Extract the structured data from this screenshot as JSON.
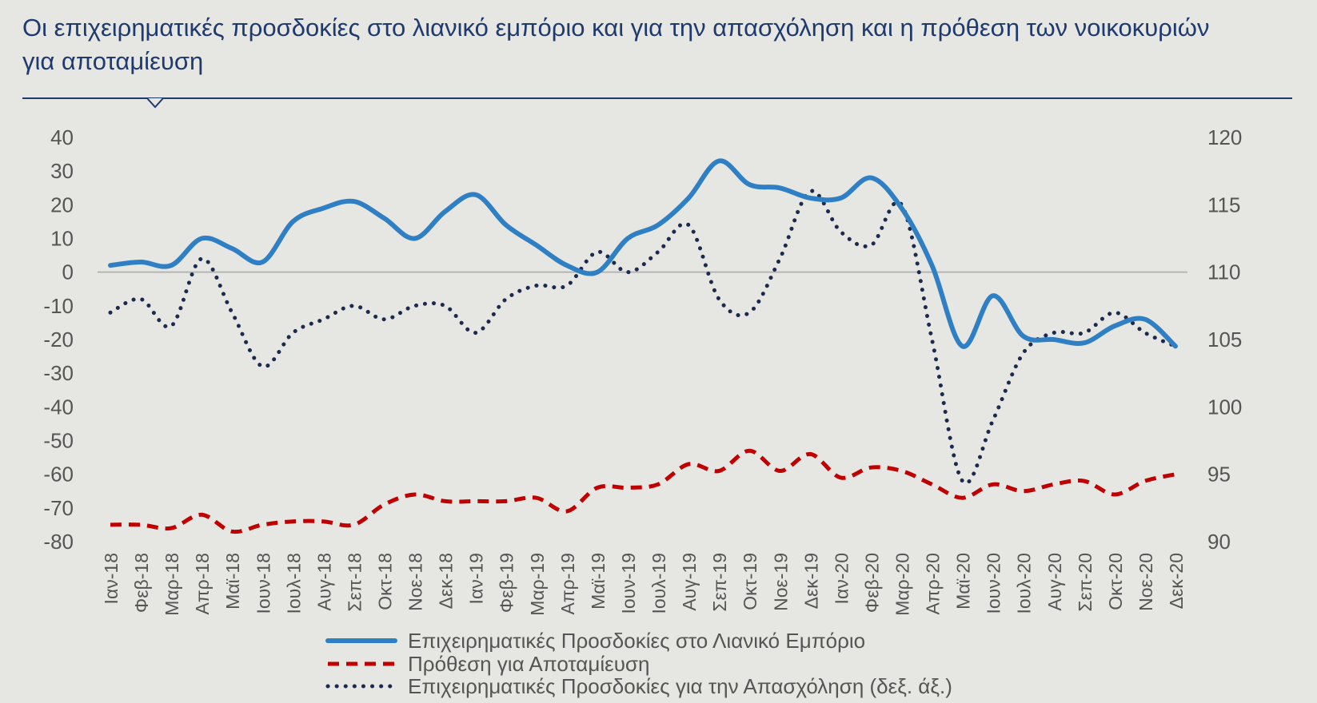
{
  "title": "Οι επιχειρηματικές προσδοκίες στο λιανικό εμπόριο και για την απασχόληση και η πρόθεση των νοικοκυριών για αποταμίευση",
  "chart_data": {
    "type": "line",
    "categories": [
      "Ιαν-18",
      "Φεβ-18",
      "Μαρ-18",
      "Απρ-18",
      "Μαϊ-18",
      "Ιουν-18",
      "Ιουλ-18",
      "Αυγ-18",
      "Σεπ-18",
      "Οκτ-18",
      "Νοε-18",
      "Δεκ-18",
      "Ιαν-19",
      "Φεβ-19",
      "Μαρ-19",
      "Απρ-19",
      "Μαϊ-19",
      "Ιουν-19",
      "Ιουλ-19",
      "Αυγ-19",
      "Σεπ-19",
      "Οκτ-19",
      "Νοε-19",
      "Δεκ-19",
      "Ιαν-20",
      "Φεβ-20",
      "Μαρ-20",
      "Απρ-20",
      "Μαϊ-20",
      "Ιουν-20",
      "Ιουλ-20",
      "Αυγ-20",
      "Σεπ-20",
      "Οκτ-20",
      "Νοε-20",
      "Δεκ-20"
    ],
    "y_left_ticks": [
      "40",
      "30",
      "20",
      "10",
      "0",
      "-10",
      "-20",
      "-30",
      "-40",
      "-50",
      "-60",
      "-70",
      "-80"
    ],
    "y_right_ticks": [
      "120",
      "115",
      "110",
      "105",
      "100",
      "95",
      "90"
    ],
    "ylim_left": [
      -80,
      40
    ],
    "ylim_right": [
      90,
      120
    ],
    "grid": false,
    "legend_position": "bottom",
    "series": [
      {
        "name": "Επιχειρηματικές Προσδοκίες στο Λιανικό Εμπόριο",
        "axis": "left",
        "style": "solid",
        "color": "#2f7fc4",
        "values": [
          2,
          3,
          2,
          10,
          7,
          3,
          15,
          19,
          21,
          16,
          10,
          18,
          23,
          14,
          8,
          2,
          0,
          10,
          14,
          22,
          33,
          26,
          25,
          22,
          22,
          28,
          19,
          2,
          -22,
          -7,
          -19,
          -20,
          -21,
          -16,
          -14,
          -22
        ]
      },
      {
        "name": "Πρόθεση για Αποταμίευση",
        "axis": "left",
        "style": "dashed",
        "color": "#c00000",
        "values": [
          -75,
          -75,
          -76,
          -72,
          -77,
          -75,
          -74,
          -74,
          -75,
          -69,
          -66,
          -68,
          -68,
          -68,
          -67,
          -71,
          -64,
          -64,
          -63,
          -57,
          -59,
          -53,
          -59,
          -54,
          -61,
          -58,
          -59,
          -63,
          -67,
          -63,
          -65,
          -63,
          -62,
          -66,
          -62,
          -60
        ]
      },
      {
        "name": "Επιχειρηματικές Προσδοκίες για την Απασχόληση (δεξ. άξ.)",
        "axis": "right",
        "style": "dotted",
        "color": "#1b2a4e",
        "values": [
          107,
          108,
          106,
          111,
          107,
          103,
          105.5,
          106.5,
          107.5,
          106.5,
          107.5,
          107.5,
          105.5,
          108,
          109,
          109,
          111.5,
          110,
          111.5,
          113.5,
          108,
          107,
          111,
          116,
          113,
          112,
          115,
          105,
          94.5,
          99,
          104,
          105.5,
          105.5,
          107,
          105.5,
          104.5
        ]
      }
    ]
  }
}
